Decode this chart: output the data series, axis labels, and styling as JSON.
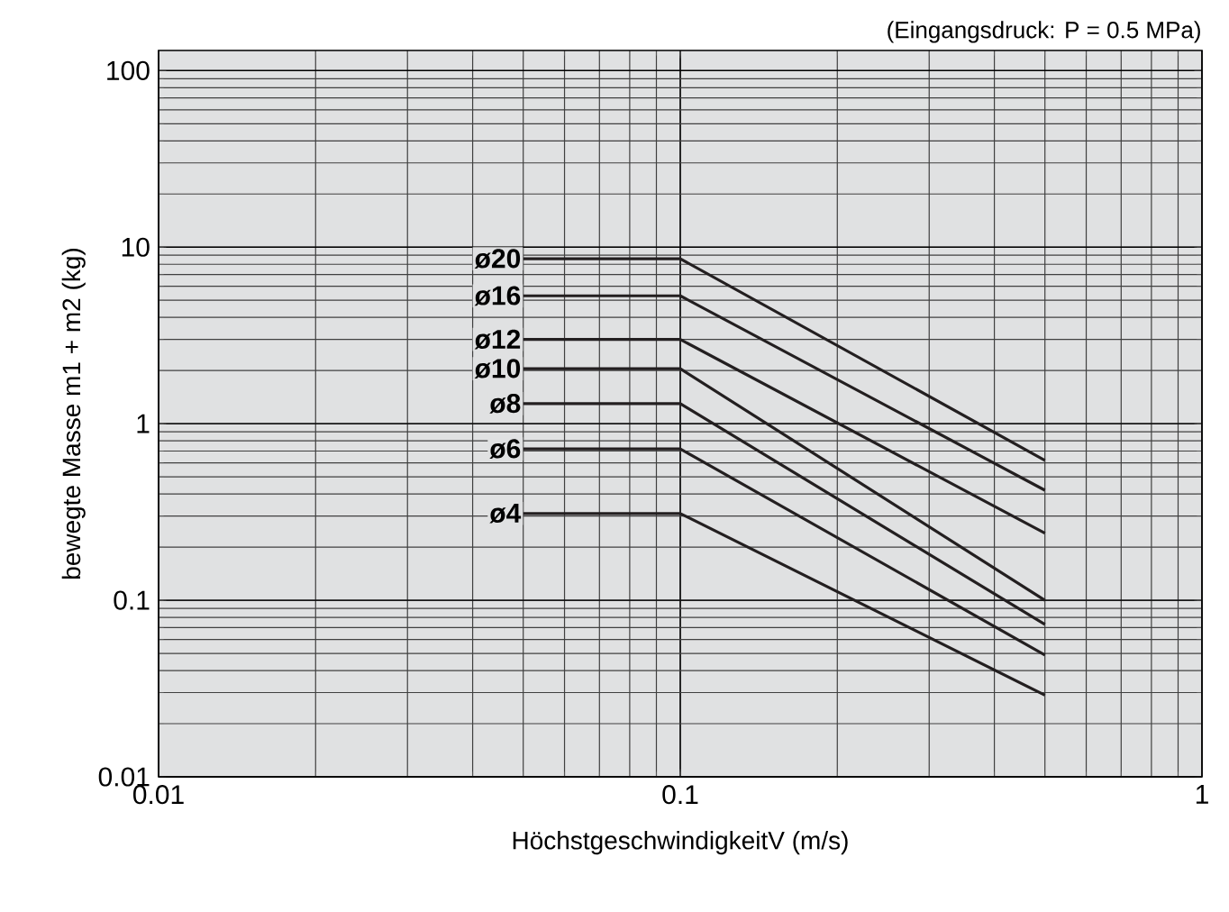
{
  "chart_data": {
    "type": "line",
    "xlabel": "HöchstgeschwindigkeitV (m/s)",
    "ylabel": "bewegte Masse m1 + m2 (kg)",
    "annotations": [
      "(Eingangsdruck: P = 0.5 MPa)"
    ],
    "log": "xy",
    "xlim": [
      0.01,
      1
    ],
    "ylim": [
      0.01,
      130
    ],
    "xticks": [
      0.01,
      0.1,
      1
    ],
    "yticks": [
      0.01,
      0.1,
      1,
      10,
      100
    ],
    "grid": true,
    "legend": false,
    "marker": "none",
    "line_style": "solid",
    "series": [
      {
        "name": "ø20",
        "color": "#231f20",
        "x": [
          0.05,
          0.1,
          0.5
        ],
        "values": [
          8.6,
          8.6,
          0.62
        ]
      },
      {
        "name": "ø16",
        "color": "#231f20",
        "x": [
          0.05,
          0.1,
          0.5
        ],
        "values": [
          5.3,
          5.3,
          0.42
        ]
      },
      {
        "name": "ø12",
        "color": "#231f20",
        "x": [
          0.05,
          0.1,
          0.5
        ],
        "values": [
          3.0,
          3.0,
          0.24
        ]
      },
      {
        "name": "ø10",
        "color": "#231f20",
        "x": [
          0.05,
          0.1,
          0.5
        ],
        "values": [
          2.05,
          2.05,
          0.1
        ]
      },
      {
        "name": "ø8",
        "color": "#231f20",
        "x": [
          0.05,
          0.1,
          0.5
        ],
        "values": [
          1.3,
          1.3,
          0.073
        ]
      },
      {
        "name": "ø6",
        "color": "#231f20",
        "x": [
          0.05,
          0.1,
          0.5
        ],
        "values": [
          0.72,
          0.72,
          0.049
        ]
      },
      {
        "name": "ø4",
        "color": "#231f20",
        "x": [
          0.05,
          0.1,
          0.5
        ],
        "values": [
          0.31,
          0.31,
          0.029
        ]
      }
    ]
  }
}
